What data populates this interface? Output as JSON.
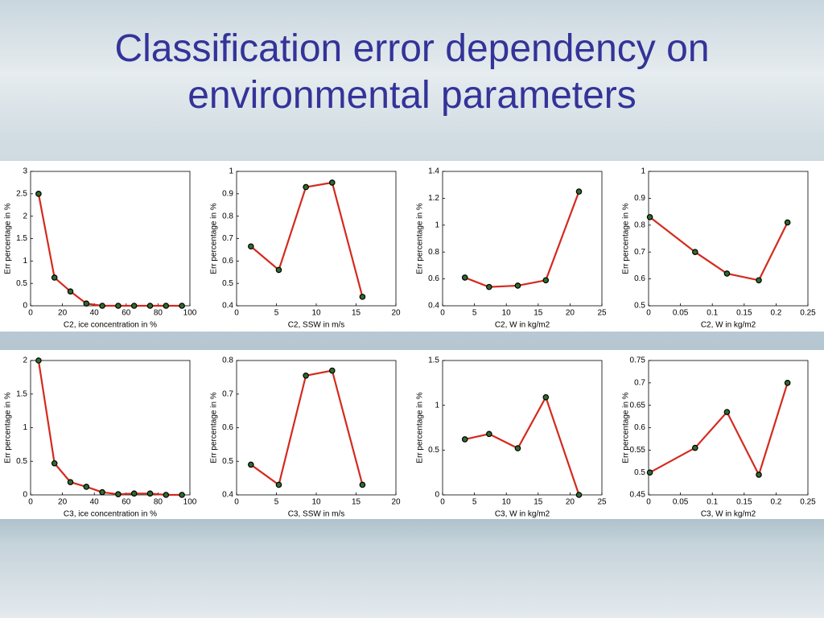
{
  "title": "Classification error dependency on environmental parameters",
  "chart_data": [
    {
      "type": "line",
      "x_label": "C2, ice concentration in %",
      "y_label": "Err percentage in %",
      "color": "#d42a1e",
      "marker_color": "#2f6b2f",
      "x": [
        5,
        15,
        25,
        35,
        45,
        55,
        65,
        75,
        85,
        95
      ],
      "values": [
        2.5,
        0.63,
        0.32,
        0.05,
        0,
        0,
        0,
        0,
        0,
        0
      ],
      "xlim": [
        0,
        100
      ],
      "ylim": [
        0,
        3
      ],
      "xticks": [
        0,
        20,
        40,
        60,
        80,
        100
      ],
      "yticks": [
        0,
        0.5,
        1,
        1.5,
        2,
        2.5,
        3
      ]
    },
    {
      "type": "line",
      "x_label": "C2, SSW in m/s",
      "y_label": "Err percentage in %",
      "color": "#d42a1e",
      "marker_color": "#2f6b2f",
      "x": [
        1.8,
        5.3,
        8.7,
        12,
        15.8
      ],
      "values": [
        0.665,
        0.56,
        0.93,
        0.95,
        0.44
      ],
      "xlim": [
        0,
        20
      ],
      "ylim": [
        0.4,
        1
      ],
      "xticks": [
        0,
        5,
        10,
        15,
        20
      ],
      "yticks": [
        0.4,
        0.5,
        0.6,
        0.7,
        0.8,
        0.9,
        1
      ]
    },
    {
      "type": "line",
      "x_label": "C2, W in kg/m2",
      "y_label": "Err percentage in %",
      "color": "#d42a1e",
      "marker_color": "#2f6b2f",
      "x": [
        3.5,
        7.3,
        11.8,
        16.2,
        21.4
      ],
      "values": [
        0.61,
        0.54,
        0.55,
        0.59,
        1.25
      ],
      "xlim": [
        0,
        25
      ],
      "ylim": [
        0.4,
        1.4
      ],
      "xticks": [
        0,
        5,
        10,
        15,
        20,
        25
      ],
      "yticks": [
        0.4,
        0.6,
        0.8,
        1,
        1.2,
        1.4
      ]
    },
    {
      "type": "line",
      "x_label": "C2, W in kg/m2",
      "y_label": "Err percentage in %",
      "color": "#d42a1e",
      "marker_color": "#2f6b2f",
      "x": [
        0.002,
        0.073,
        0.123,
        0.173,
        0.218
      ],
      "values": [
        0.83,
        0.7,
        0.62,
        0.595,
        0.81
      ],
      "xlim": [
        0,
        0.25
      ],
      "ylim": [
        0.5,
        1
      ],
      "xticks": [
        0,
        0.05,
        0.1,
        0.15,
        0.2,
        0.25
      ],
      "yticks": [
        0.5,
        0.6,
        0.7,
        0.8,
        0.9,
        1
      ]
    },
    {
      "type": "line",
      "x_label": "C3, ice concentration in %",
      "y_label": "Err percentage in %",
      "color": "#d42a1e",
      "marker_color": "#2f6b2f",
      "x": [
        5,
        15,
        25,
        35,
        45,
        55,
        65,
        75,
        85,
        95
      ],
      "values": [
        2.0,
        0.47,
        0.19,
        0.12,
        0.04,
        0.01,
        0.02,
        0.02,
        0,
        0
      ],
      "xlim": [
        0,
        100
      ],
      "ylim": [
        0,
        2
      ],
      "xticks": [
        0,
        20,
        40,
        60,
        80,
        100
      ],
      "yticks": [
        0,
        0.5,
        1,
        1.5,
        2
      ]
    },
    {
      "type": "line",
      "x_label": "C3, SSW in m/s",
      "y_label": "Err percentage in %",
      "color": "#d42a1e",
      "marker_color": "#2f6b2f",
      "x": [
        1.8,
        5.3,
        8.7,
        12,
        15.8
      ],
      "values": [
        0.49,
        0.43,
        0.755,
        0.77,
        0.43
      ],
      "xlim": [
        0,
        20
      ],
      "ylim": [
        0.4,
        0.8
      ],
      "xticks": [
        0,
        5,
        10,
        15,
        20
      ],
      "yticks": [
        0.4,
        0.5,
        0.6,
        0.7,
        0.8
      ]
    },
    {
      "type": "line",
      "x_label": "C3, W in kg/m2",
      "y_label": "Err percentage in %",
      "color": "#d42a1e",
      "marker_color": "#2f6b2f",
      "x": [
        3.5,
        7.3,
        11.8,
        16.2,
        21.4
      ],
      "values": [
        0.62,
        0.68,
        0.52,
        1.09,
        0
      ],
      "xlim": [
        0,
        25
      ],
      "ylim": [
        0,
        1.5
      ],
      "xticks": [
        0,
        5,
        10,
        15,
        20,
        25
      ],
      "yticks": [
        0,
        0.5,
        1,
        1.5
      ]
    },
    {
      "type": "line",
      "x_label": "C3, W in kg/m2",
      "y_label": "Err percentage in %",
      "color": "#d42a1e",
      "marker_color": "#2f6b2f",
      "x": [
        0.002,
        0.073,
        0.123,
        0.173,
        0.218
      ],
      "values": [
        0.5,
        0.555,
        0.635,
        0.495,
        0.7
      ],
      "xlim": [
        0,
        0.25
      ],
      "ylim": [
        0.45,
        0.75
      ],
      "xticks": [
        0,
        0.05,
        0.1,
        0.15,
        0.2,
        0.25
      ],
      "yticks": [
        0.45,
        0.5,
        0.55,
        0.6,
        0.65,
        0.7,
        0.75
      ]
    }
  ]
}
